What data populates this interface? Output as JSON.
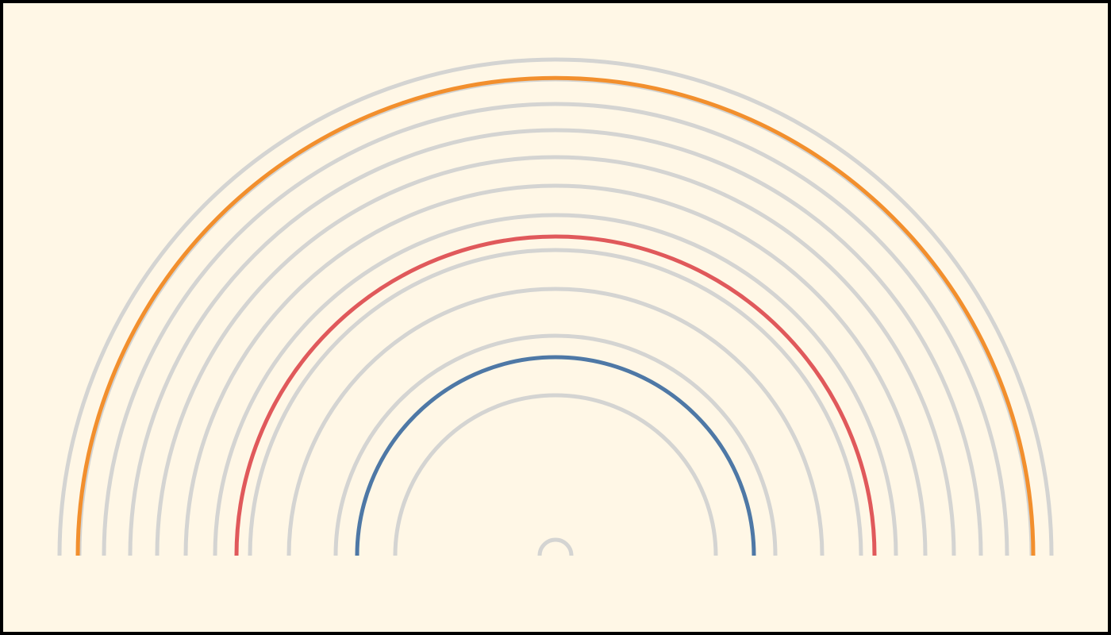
{
  "chart_data": {
    "type": "radial-arc",
    "title": "",
    "xlabel": "",
    "ylabel": "",
    "legend": "none",
    "grid": false,
    "colors": {
      "background": "#fff7e6",
      "frame": "#000000",
      "default_arc": "#d4d4d2",
      "highlight_blue": "#4e78a6",
      "highlight_red": "#e0595b",
      "highlight_orange": "#f28f2d"
    },
    "radius_range": [
      0,
      628
    ],
    "arcs": [
      {
        "radius": 20,
        "color": "#d4d4d2"
      },
      {
        "radius": 202,
        "color": "#d4d4d2"
      },
      {
        "radius": 250,
        "color": "#4e78a6",
        "highlighted": true
      },
      {
        "radius": 277,
        "color": "#d4d4d2"
      },
      {
        "radius": 336,
        "color": "#d4d4d2"
      },
      {
        "radius": 385,
        "color": "#d4d4d2"
      },
      {
        "radius": 402,
        "color": "#e0595b",
        "highlighted": true
      },
      {
        "radius": 429,
        "color": "#d4d4d2"
      },
      {
        "radius": 466,
        "color": "#d4d4d2"
      },
      {
        "radius": 502,
        "color": "#d4d4d2"
      },
      {
        "radius": 536,
        "color": "#d4d4d2"
      },
      {
        "radius": 569,
        "color": "#d4d4d2"
      },
      {
        "radius": 600,
        "color": "#d4d4d2"
      },
      {
        "radius": 602,
        "color": "#f28f2d",
        "highlighted": true
      },
      {
        "radius": 625,
        "color": "#d4d4d2"
      }
    ]
  }
}
